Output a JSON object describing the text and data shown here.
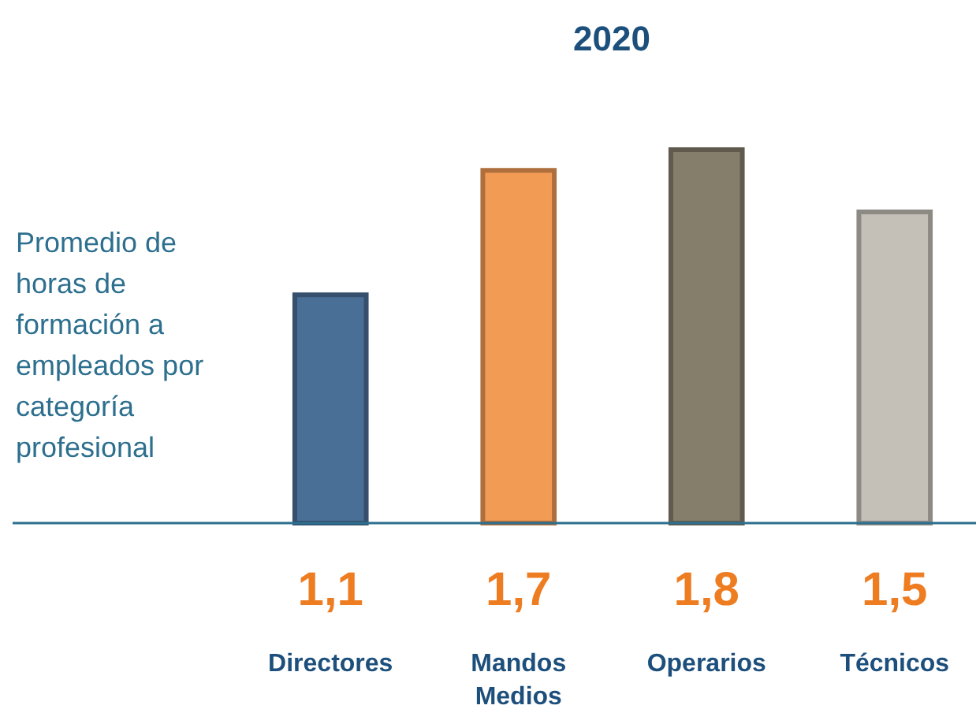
{
  "chart_data": {
    "type": "bar",
    "title": "2020",
    "ylabel": "Promedio de horas de formación a empleados por categoría profesional",
    "categories": [
      "Directores",
      "Mandos Medios",
      "Operarios",
      "Técnicos"
    ],
    "values": [
      1.1,
      1.7,
      1.8,
      1.5
    ],
    "colors": [
      "#4a6f96",
      "#f29b55",
      "#857e6b",
      "#c4c0b8"
    ],
    "value_labels": [
      "1,1",
      "1,7",
      "1,8",
      "1,5"
    ]
  }
}
